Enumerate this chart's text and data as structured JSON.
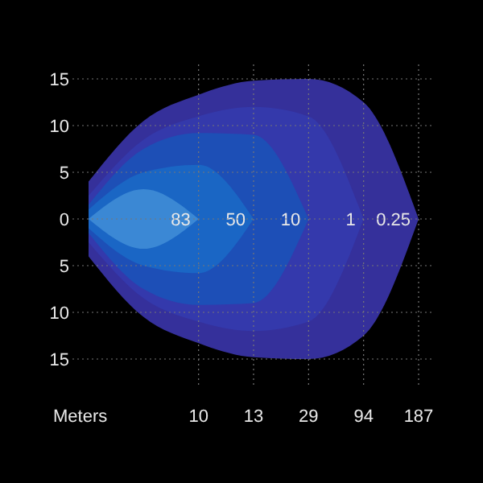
{
  "chart_data": {
    "type": "area",
    "xlabel": "Meters",
    "categories": [
      null,
      null,
      "10",
      "13",
      "29",
      "94",
      "187"
    ],
    "ylim": [
      -15,
      15
    ],
    "yticks": [
      {
        "value": 15,
        "label": "15"
      },
      {
        "value": 10,
        "label": "10"
      },
      {
        "value": 5,
        "label": "5"
      },
      0,
      {
        "value": -5,
        "label": "5"
      },
      {
        "value": -10,
        "label": "10"
      },
      {
        "value": -15,
        "label": "15"
      }
    ],
    "grid": true,
    "series": [
      {
        "name": "0.25",
        "color": "#35309a",
        "values": [
          4,
          10.5,
          13.3,
          14.8,
          15,
          12.5,
          0
        ]
      },
      {
        "color": "#35309b",
        "values": [
          -4,
          -10.5,
          -13.3,
          -14.8,
          -15,
          -12.5,
          0
        ]
      },
      {
        "name": "1",
        "color": "#3439ab",
        "values": [
          2.5,
          8.5,
          11,
          12,
          11,
          0,
          null
        ]
      },
      {
        "color": "#3439ac",
        "values": [
          -2.5,
          -8.5,
          -11,
          -12,
          -11,
          0,
          null
        ]
      },
      {
        "name": "10",
        "color": "#1d4fb6",
        "values": [
          1.5,
          7.5,
          9.2,
          9,
          0,
          null,
          null
        ]
      },
      {
        "color": "#1d4fb7",
        "values": [
          -1.5,
          -7.5,
          -9.2,
          -9,
          0,
          null,
          null
        ]
      },
      {
        "name": "50",
        "color": "#1a66c4",
        "values": [
          1,
          5,
          5.8,
          0,
          null,
          null,
          null
        ]
      },
      {
        "color": "#1a66c5",
        "values": [
          -1,
          -5,
          -5.8,
          0,
          null,
          null,
          null
        ]
      },
      {
        "name": "83",
        "color": "#3b88d4",
        "values": [
          0,
          3.2,
          0,
          null,
          null,
          null,
          null
        ]
      },
      {
        "color": "#3b88d5",
        "values": [
          0,
          -3.2,
          0,
          null,
          null,
          null,
          null
        ]
      }
    ]
  }
}
